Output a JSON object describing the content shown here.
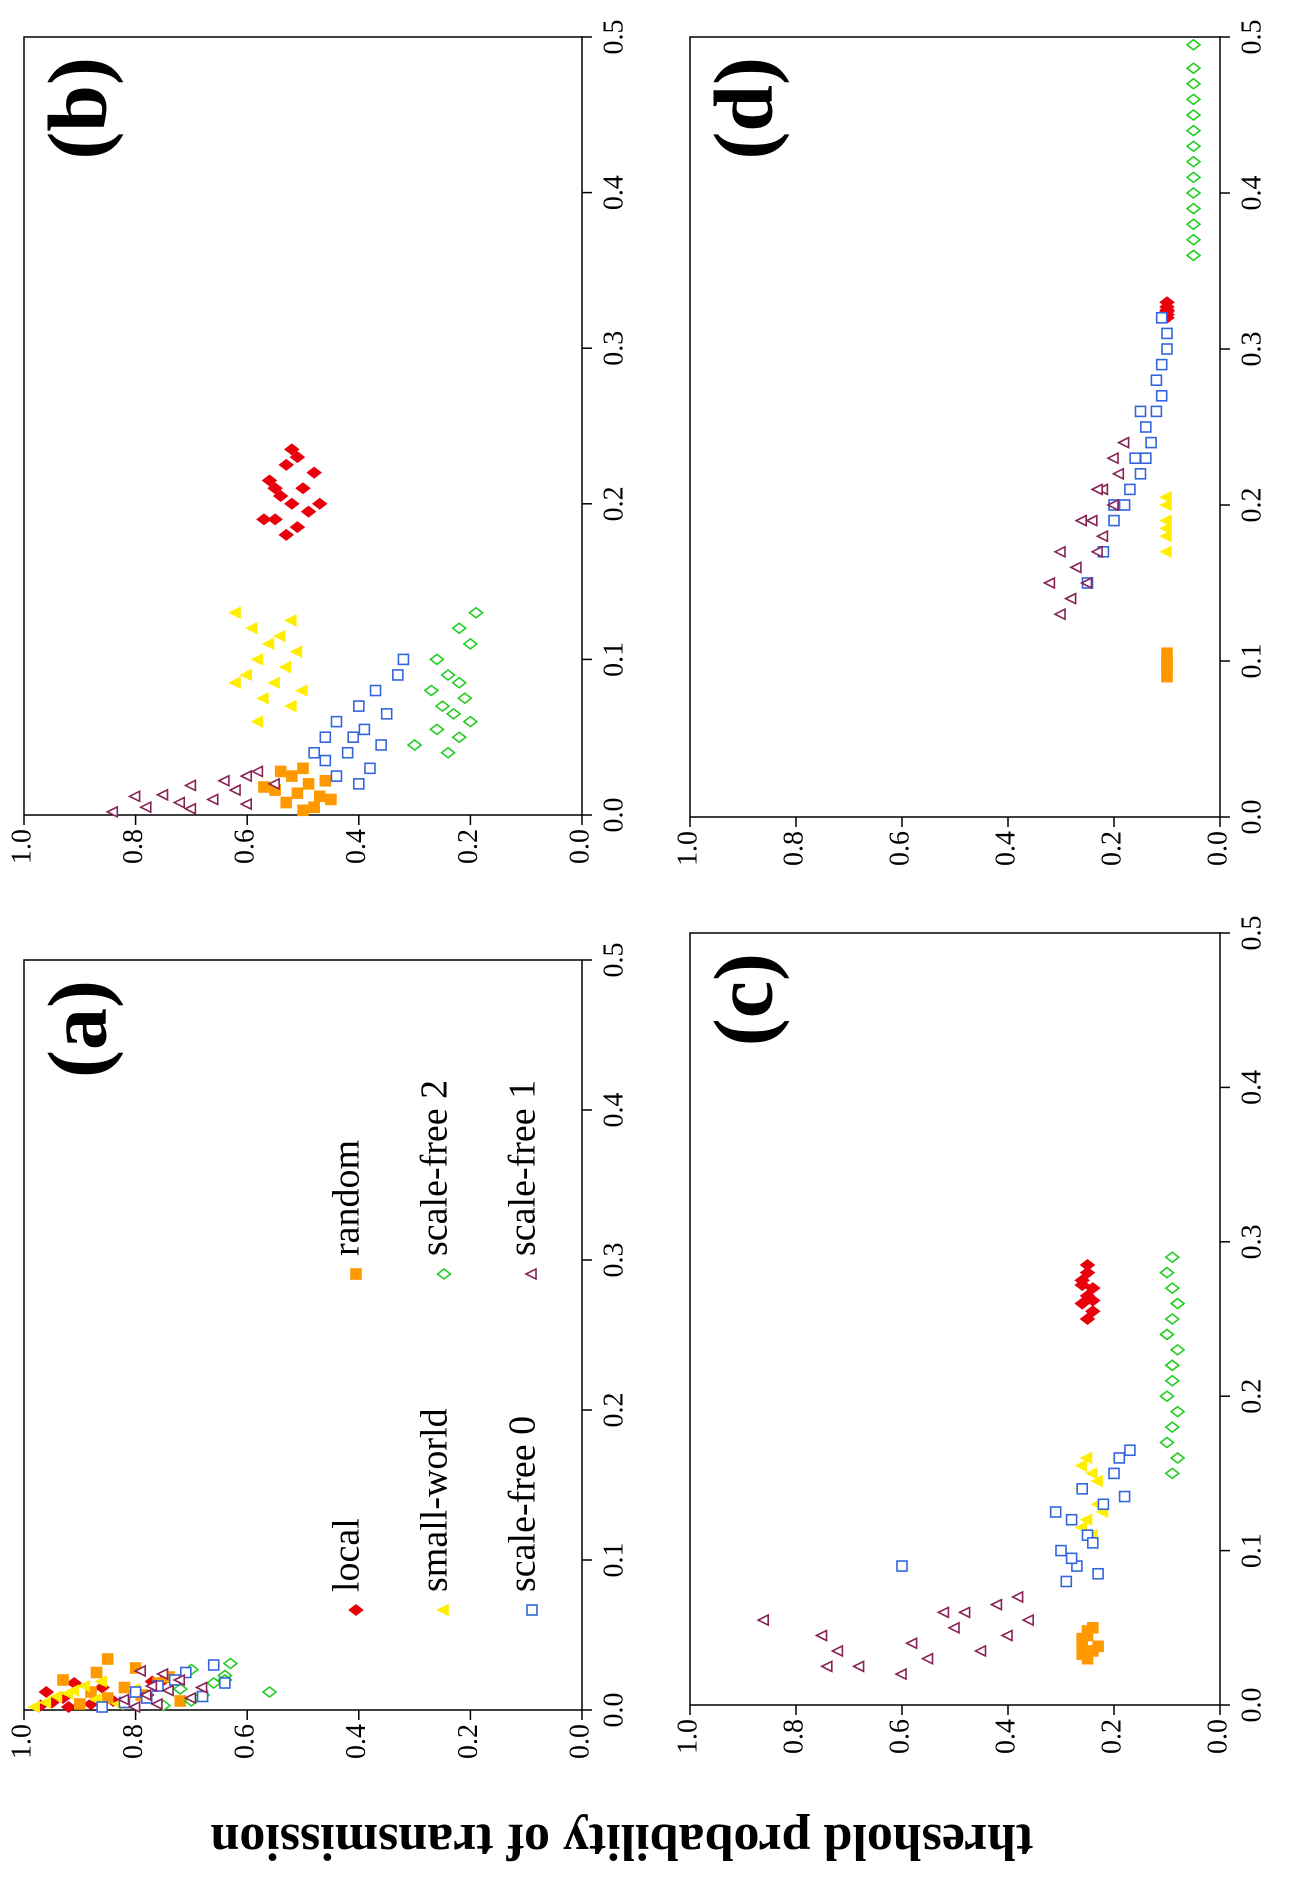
{
  "chart_data": [
    {
      "type": "scatter",
      "label": "(a)",
      "y_label": "threshold probability of transmission",
      "xlim": [
        0,
        0.5
      ],
      "ylim": [
        0,
        1
      ],
      "xticks": [
        {
          "value": 0,
          "label": "0.0"
        },
        0.1,
        0.2,
        0.3,
        0.4,
        0.5
      ],
      "yticks": [
        {
          "value": 0,
          "label": "0.0"
        },
        0.2,
        0.4,
        0.6,
        0.8,
        {
          "value": 1,
          "label": "1.0"
        }
      ],
      "series": [
        {
          "name": "local",
          "color": "#e8000b",
          "marker": "diamond",
          "filled": true,
          "x": [
            0.003,
            0.005,
            0.008,
            0.004,
            0.012,
            0.018,
            0.02,
            0.006,
            0.01,
            0.015,
            0.002,
            0.019
          ],
          "y": [
            0.97,
            0.95,
            0.93,
            0.88,
            0.96,
            0.91,
            0.75,
            0.84,
            0.78,
            0.86,
            0.92,
            0.77
          ]
        },
        {
          "name": "random",
          "color": "#ff9900",
          "marker": "square",
          "filled": true,
          "x": [
            0.004,
            0.008,
            0.012,
            0.015,
            0.02,
            0.025,
            0.034,
            0.01,
            0.018,
            0.006,
            0.028,
            0.022
          ],
          "y": [
            0.9,
            0.85,
            0.88,
            0.82,
            0.93,
            0.87,
            0.85,
            0.79,
            0.76,
            0.72,
            0.8,
            0.74
          ]
        },
        {
          "name": "small-world",
          "color": "#ffee00",
          "marker": "triangle",
          "filled": true,
          "x": [
            0.002,
            0.005,
            0.009,
            0.013,
            0.016,
            0.007,
            0.011,
            0.004,
            0.019,
            0.014
          ],
          "y": [
            0.98,
            0.96,
            0.94,
            0.91,
            0.89,
            0.87,
            0.92,
            0.83,
            0.86,
            0.8
          ]
        },
        {
          "name": "scale-free 2",
          "color": "#22cc22",
          "marker": "diamond",
          "filled": false,
          "x": [
            0.003,
            0.006,
            0.01,
            0.014,
            0.018,
            0.023,
            0.027,
            0.031,
            0.012,
            0.02
          ],
          "y": [
            0.75,
            0.7,
            0.68,
            0.72,
            0.66,
            0.64,
            0.7,
            0.63,
            0.56,
            0.64
          ]
        },
        {
          "name": "scale-free 0",
          "color": "#3366dd",
          "marker": "square",
          "filled": false,
          "x": [
            0.002,
            0.005,
            0.008,
            0.012,
            0.016,
            0.02,
            0.025,
            0.03,
            0.009,
            0.018
          ],
          "y": [
            0.86,
            0.82,
            0.78,
            0.8,
            0.76,
            0.73,
            0.71,
            0.66,
            0.68,
            0.64
          ]
        },
        {
          "name": "scale-free 1",
          "color": "#882255",
          "marker": "triangle",
          "filled": false,
          "x": [
            0.002,
            0.004,
            0.007,
            0.01,
            0.013,
            0.016,
            0.02,
            0.024,
            0.008,
            0.015,
            0.026
          ],
          "y": [
            0.8,
            0.76,
            0.82,
            0.78,
            0.74,
            0.77,
            0.72,
            0.75,
            0.7,
            0.68,
            0.79
          ]
        }
      ]
    },
    {
      "type": "scatter",
      "label": "(b)",
      "xlim": [
        0,
        0.5
      ],
      "ylim": [
        0,
        1
      ],
      "xticks": [
        {
          "value": 0,
          "label": "0.0"
        },
        0.1,
        0.2,
        0.3,
        0.4,
        0.5
      ],
      "yticks": [
        {
          "value": 0,
          "label": "0.0"
        },
        0.2,
        0.4,
        0.6,
        0.8,
        {
          "value": 1,
          "label": "1.0"
        }
      ],
      "series": [
        {
          "color": "#e8000b",
          "marker": "diamond",
          "filled": true,
          "x": [
            0.18,
            0.185,
            0.19,
            0.195,
            0.2,
            0.205,
            0.21,
            0.215,
            0.22,
            0.225,
            0.23,
            0.19,
            0.2,
            0.21,
            0.235
          ],
          "y": [
            0.53,
            0.51,
            0.55,
            0.49,
            0.52,
            0.54,
            0.5,
            0.56,
            0.48,
            0.53,
            0.51,
            0.57,
            0.47,
            0.55,
            0.52
          ]
        },
        {
          "color": "#ff9900",
          "marker": "square",
          "filled": true,
          "x": [
            0.003,
            0.008,
            0.012,
            0.016,
            0.02,
            0.025,
            0.03,
            0.01,
            0.018,
            0.005,
            0.022,
            0.028,
            0.014
          ],
          "y": [
            0.5,
            0.53,
            0.47,
            0.55,
            0.49,
            0.52,
            0.5,
            0.45,
            0.57,
            0.48,
            0.46,
            0.54,
            0.51
          ]
        },
        {
          "color": "#ffee00",
          "marker": "triangle",
          "filled": true,
          "x": [
            0.07,
            0.075,
            0.08,
            0.085,
            0.09,
            0.095,
            0.1,
            0.105,
            0.11,
            0.115,
            0.12,
            0.125,
            0.13,
            0.06,
            0.085
          ],
          "y": [
            0.52,
            0.57,
            0.5,
            0.55,
            0.6,
            0.53,
            0.58,
            0.51,
            0.56,
            0.54,
            0.59,
            0.52,
            0.62,
            0.58,
            0.62
          ]
        },
        {
          "color": "#22cc22",
          "marker": "diamond",
          "filled": false,
          "x": [
            0.04,
            0.05,
            0.055,
            0.06,
            0.065,
            0.07,
            0.075,
            0.08,
            0.085,
            0.09,
            0.1,
            0.11,
            0.12,
            0.13,
            0.045
          ],
          "y": [
            0.24,
            0.22,
            0.26,
            0.2,
            0.23,
            0.25,
            0.21,
            0.27,
            0.22,
            0.24,
            0.26,
            0.2,
            0.22,
            0.19,
            0.3
          ]
        },
        {
          "color": "#3366dd",
          "marker": "square",
          "filled": false,
          "x": [
            0.02,
            0.025,
            0.03,
            0.035,
            0.04,
            0.045,
            0.05,
            0.055,
            0.06,
            0.065,
            0.07,
            0.08,
            0.09,
            0.1,
            0.04,
            0.05
          ],
          "y": [
            0.4,
            0.44,
            0.38,
            0.46,
            0.42,
            0.36,
            0.41,
            0.39,
            0.44,
            0.35,
            0.4,
            0.37,
            0.33,
            0.32,
            0.48,
            0.46
          ]
        },
        {
          "color": "#882255",
          "marker": "triangle",
          "filled": false,
          "x": [
            0.002,
            0.005,
            0.008,
            0.01,
            0.013,
            0.016,
            0.019,
            0.022,
            0.025,
            0.028,
            0.004,
            0.012,
            0.02,
            0.007
          ],
          "y": [
            0.84,
            0.78,
            0.72,
            0.66,
            0.75,
            0.62,
            0.7,
            0.64,
            0.6,
            0.58,
            0.7,
            0.8,
            0.55,
            0.6
          ]
        }
      ]
    },
    {
      "type": "scatter",
      "label": "(c)",
      "xlim": [
        0,
        0.5
      ],
      "ylim": [
        0,
        1
      ],
      "xticks": [
        {
          "value": 0,
          "label": "0.0"
        },
        0.1,
        0.2,
        0.3,
        0.4,
        0.5
      ],
      "yticks": [
        {
          "value": 0,
          "label": "0.0"
        },
        0.2,
        0.4,
        0.6,
        0.8,
        {
          "value": 1,
          "label": "1.0"
        }
      ],
      "series": [
        {
          "color": "#e8000b",
          "marker": "diamond",
          "filled": true,
          "x": [
            0.25,
            0.255,
            0.26,
            0.265,
            0.27,
            0.275,
            0.28,
            0.285,
            0.262,
            0.272
          ],
          "y": [
            0.25,
            0.24,
            0.26,
            0.25,
            0.24,
            0.26,
            0.25,
            0.25,
            0.24,
            0.26
          ]
        },
        {
          "color": "#ff9900",
          "marker": "square",
          "filled": true,
          "x": [
            0.03,
            0.035,
            0.04,
            0.045,
            0.05,
            0.038,
            0.043,
            0.048,
            0.033
          ],
          "y": [
            0.25,
            0.24,
            0.26,
            0.25,
            0.24,
            0.23,
            0.26,
            0.25,
            0.26
          ]
        },
        {
          "color": "#ffee00",
          "marker": "triangle",
          "filled": true,
          "x": [
            0.11,
            0.12,
            0.13,
            0.14,
            0.15,
            0.16,
            0.125,
            0.145,
            0.115,
            0.155
          ],
          "y": [
            0.24,
            0.25,
            0.23,
            0.26,
            0.24,
            0.25,
            0.22,
            0.23,
            0.26,
            0.26
          ]
        },
        {
          "color": "#22cc22",
          "marker": "diamond",
          "filled": false,
          "x": [
            0.15,
            0.16,
            0.17,
            0.18,
            0.19,
            0.2,
            0.21,
            0.22,
            0.23,
            0.24,
            0.25,
            0.26,
            0.27,
            0.28,
            0.29
          ],
          "y": [
            0.09,
            0.08,
            0.1,
            0.09,
            0.08,
            0.1,
            0.09,
            0.09,
            0.08,
            0.1,
            0.09,
            0.08,
            0.09,
            0.1,
            0.09
          ]
        },
        {
          "color": "#3366dd",
          "marker": "square",
          "filled": false,
          "x": [
            0.08,
            0.09,
            0.1,
            0.11,
            0.12,
            0.13,
            0.14,
            0.15,
            0.16,
            0.165,
            0.105,
            0.125,
            0.085,
            0.095,
            0.135,
            0.09
          ],
          "y": [
            0.29,
            0.27,
            0.3,
            0.25,
            0.28,
            0.22,
            0.26,
            0.2,
            0.19,
            0.17,
            0.24,
            0.31,
            0.23,
            0.28,
            0.18,
            0.6
          ]
        },
        {
          "color": "#882255",
          "marker": "triangle",
          "filled": false,
          "x": [
            0.055,
            0.045,
            0.035,
            0.025,
            0.02,
            0.03,
            0.04,
            0.05,
            0.06,
            0.065,
            0.07,
            0.035,
            0.045,
            0.055,
            0.06,
            0.025
          ],
          "y": [
            0.86,
            0.75,
            0.72,
            0.68,
            0.6,
            0.55,
            0.58,
            0.5,
            0.48,
            0.42,
            0.38,
            0.45,
            0.4,
            0.36,
            0.52,
            0.74
          ]
        }
      ]
    },
    {
      "type": "scatter",
      "label": "(d)",
      "xlim": [
        0,
        0.5
      ],
      "ylim": [
        0,
        1
      ],
      "xticks": [
        {
          "value": 0,
          "label": "0.0"
        },
        0.1,
        0.2,
        0.3,
        0.4,
        0.5
      ],
      "yticks": [
        {
          "value": 0,
          "label": "0.0"
        },
        0.2,
        0.4,
        0.6,
        0.8,
        {
          "value": 1,
          "label": "1.0"
        }
      ],
      "series": [
        {
          "color": "#e8000b",
          "marker": "diamond",
          "filled": true,
          "x": [
            0.32,
            0.322,
            0.325,
            0.327,
            0.33,
            0.324
          ],
          "y": [
            0.1,
            0.1,
            0.1,
            0.1,
            0.1,
            0.1
          ]
        },
        {
          "color": "#ff9900",
          "marker": "square",
          "filled": true,
          "x": [
            0.09,
            0.095,
            0.1,
            0.105,
            0.098
          ],
          "y": [
            0.1,
            0.1,
            0.1,
            0.1,
            0.1
          ]
        },
        {
          "color": "#ffee00",
          "marker": "triangle",
          "filled": true,
          "x": [
            0.17,
            0.18,
            0.19,
            0.2,
            0.205,
            0.185
          ],
          "y": [
            0.1,
            0.1,
            0.1,
            0.1,
            0.1,
            0.1
          ]
        },
        {
          "color": "#22cc22",
          "marker": "diamond",
          "filled": false,
          "x": [
            0.36,
            0.37,
            0.38,
            0.39,
            0.4,
            0.41,
            0.42,
            0.43,
            0.44,
            0.45,
            0.46,
            0.47,
            0.48,
            0.495
          ],
          "y": [
            0.05,
            0.05,
            0.05,
            0.05,
            0.05,
            0.05,
            0.05,
            0.05,
            0.05,
            0.05,
            0.05,
            0.05,
            0.05,
            0.05
          ]
        },
        {
          "color": "#3366dd",
          "marker": "square",
          "filled": false,
          "x": [
            0.15,
            0.17,
            0.19,
            0.2,
            0.21,
            0.22,
            0.23,
            0.24,
            0.25,
            0.26,
            0.27,
            0.28,
            0.29,
            0.3,
            0.31,
            0.32,
            0.2,
            0.23,
            0.26
          ],
          "y": [
            0.25,
            0.22,
            0.2,
            0.18,
            0.17,
            0.15,
            0.14,
            0.13,
            0.14,
            0.12,
            0.11,
            0.12,
            0.11,
            0.1,
            0.1,
            0.11,
            0.2,
            0.16,
            0.15
          ]
        },
        {
          "color": "#882255",
          "marker": "triangle",
          "filled": false,
          "x": [
            0.13,
            0.14,
            0.15,
            0.16,
            0.17,
            0.18,
            0.19,
            0.2,
            0.21,
            0.22,
            0.23,
            0.24,
            0.15,
            0.17,
            0.19,
            0.21
          ],
          "y": [
            0.3,
            0.28,
            0.25,
            0.27,
            0.23,
            0.22,
            0.26,
            0.2,
            0.22,
            0.19,
            0.2,
            0.18,
            0.32,
            0.3,
            0.24,
            0.23
          ]
        }
      ]
    }
  ]
}
